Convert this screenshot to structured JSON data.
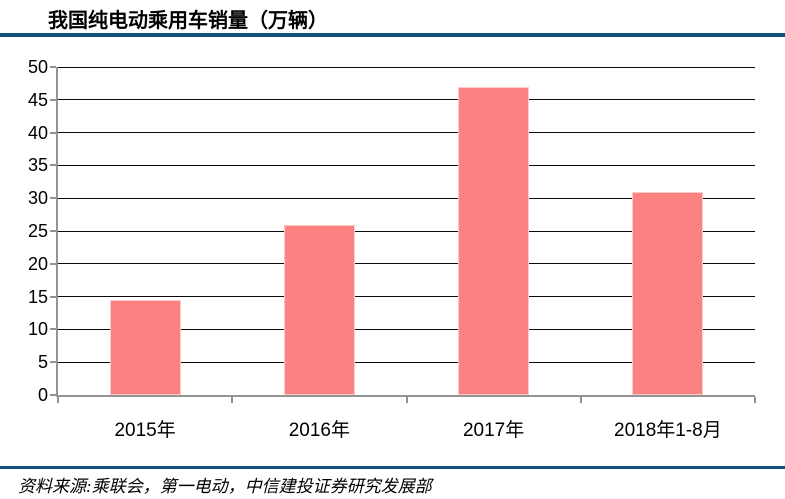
{
  "title": "我国纯电动乘用车销量（万辆）",
  "source": "资料来源:乘联会，第一电动，中信建投证券研究发展部",
  "colors": {
    "accent_rule": "#14507E",
    "bar_fill": "#FC8181",
    "bar_border": "#FDC9C9",
    "axis": "#949494",
    "gridline": "#0A0A0A",
    "text": "#000000",
    "background": "#FFFFFF"
  },
  "chart_data": {
    "type": "bar",
    "title": "我国纯电动乘用车销量（万辆）",
    "categories": [
      "2015年",
      "2016年",
      "2017年",
      "2018年1-8月"
    ],
    "values": [
      14.5,
      25.9,
      47.0,
      31.0
    ],
    "xlabel": "",
    "ylabel": "",
    "ylim": [
      0,
      50
    ],
    "ytick_step": 5,
    "yticks": [
      0,
      5,
      10,
      15,
      20,
      25,
      30,
      35,
      40,
      45,
      50
    ],
    "grid": true,
    "gridline_orientation": "horizontal",
    "legend": false,
    "bar_color_name": "salmon-pink"
  }
}
